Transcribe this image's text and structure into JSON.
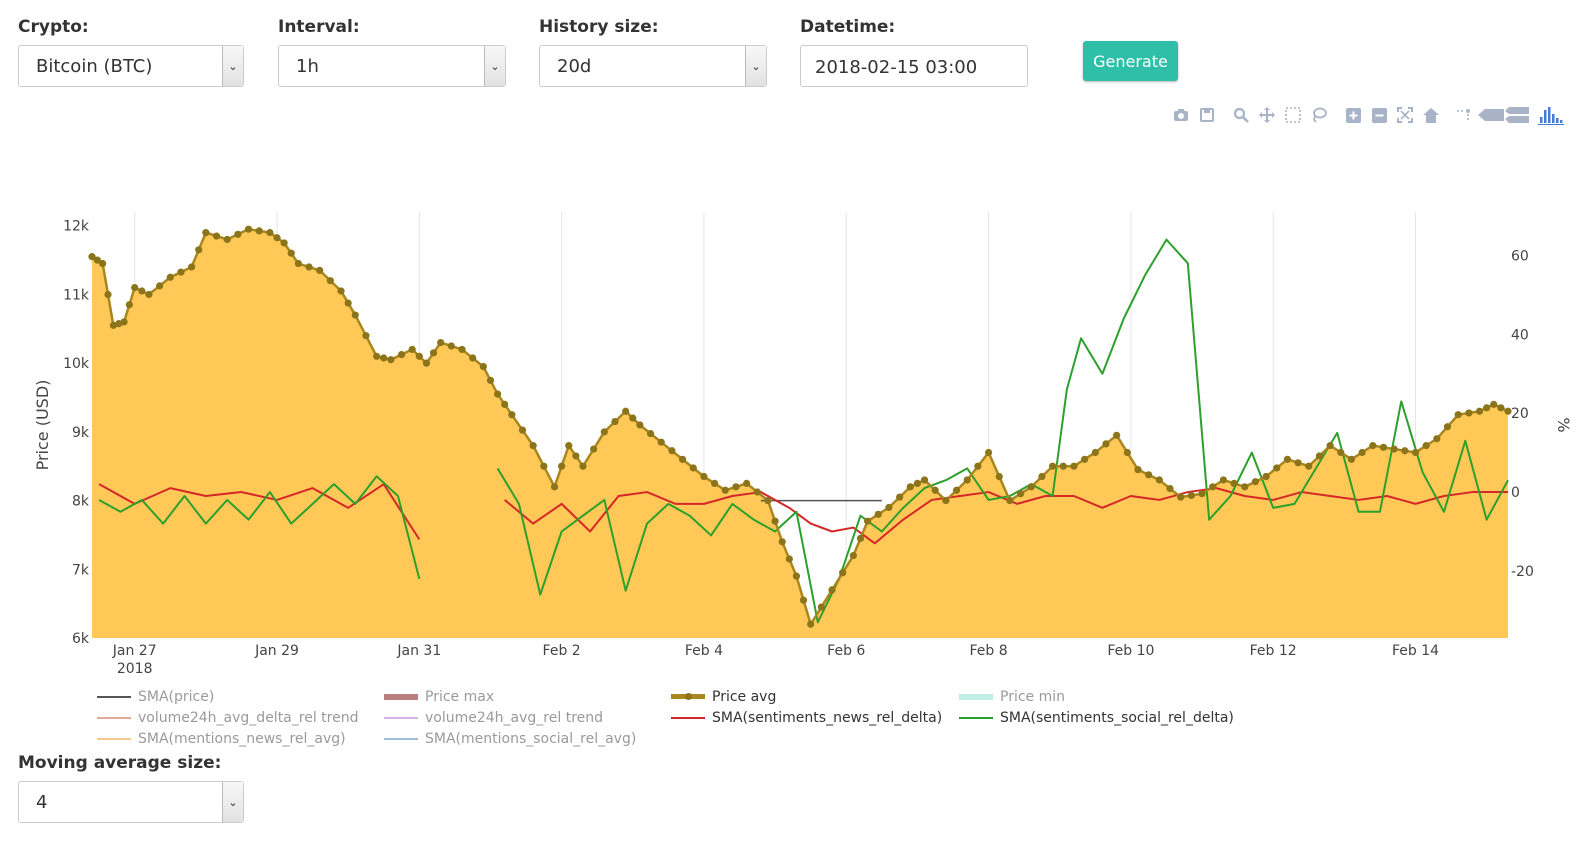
{
  "controls": {
    "crypto": {
      "label": "Crypto:",
      "value": "Bitcoin (BTC)"
    },
    "interval": {
      "label": "Interval:",
      "value": "1h"
    },
    "history": {
      "label": "History size:",
      "value": "20d"
    },
    "datetime": {
      "label": "Datetime:",
      "value": "2018-02-15 03:00"
    },
    "generate": "Generate",
    "moving_avg": {
      "label": "Moving average size:",
      "value": "4"
    }
  },
  "modebar": [
    "camera-icon",
    "save-icon",
    "zoom-icon",
    "pan-icon",
    "box-select-icon",
    "lasso-icon",
    "zoom-in-icon",
    "zoom-out-icon",
    "autoscale-icon",
    "reset-axes-icon",
    "spike-lines-icon",
    "hover-closest-icon",
    "hover-compare-icon",
    "plotly-logo-icon"
  ],
  "colors": {
    "price_fill": "#ffc857",
    "price_line": "#a8871f",
    "price_marker": "#8b7419",
    "news": "#d62728",
    "social": "#2ca02c",
    "sma_price": "#555555",
    "grid": "#e6e6e6",
    "accent": "#2fbfa8"
  },
  "chart_data": {
    "type": "line",
    "ylabel": "Price (USD)",
    "y2label": "%",
    "ylim": [
      6000,
      12200
    ],
    "y2lim": [
      -37,
      71
    ],
    "y_ticks": [
      "6k",
      "7k",
      "8k",
      "9k",
      "10k",
      "11k",
      "12k"
    ],
    "y2_ticks": [
      "-20",
      "0",
      "20",
      "40",
      "60"
    ],
    "x_ticks": [
      "Jan 27",
      "Jan 29",
      "Jan 31",
      "Feb 2",
      "Feb 4",
      "Feb 6",
      "Feb 8",
      "Feb 10",
      "Feb 12",
      "Feb 14"
    ],
    "x_year": "2018",
    "x_range_days": [
      26.4,
      46.3
    ],
    "series": [
      {
        "name": "Price avg",
        "axis": "left",
        "fill": true,
        "x": [
          26.4,
          26.55,
          26.7,
          26.85,
          27,
          27.2,
          27.5,
          27.8,
          28,
          28.3,
          28.6,
          28.9,
          29.1,
          29.3,
          29.6,
          29.9,
          30.1,
          30.4,
          30.6,
          30.9,
          31.1,
          31.3,
          31.6,
          31.9,
          32.1,
          32.3,
          32.6,
          32.9,
          33.1,
          33.3,
          33.6,
          33.9,
          34.1,
          34.4,
          34.7,
          35,
          35.3,
          35.6,
          35.9,
          36.1,
          36.3,
          36.5,
          36.8,
          37.1,
          37.3,
          37.6,
          37.9,
          38.1,
          38.4,
          38.7,
          39,
          39.3,
          39.6,
          39.9,
          40.2,
          40.5,
          40.8,
          41.1,
          41.4,
          41.7,
          42,
          42.3,
          42.6,
          42.9,
          43.2,
          43.5,
          43.8,
          44.1,
          44.4,
          44.7,
          45,
          45.3,
          45.6,
          45.9,
          46.1,
          46.3
        ],
        "values": [
          11550,
          11450,
          10550,
          10600,
          11100,
          11000,
          11250,
          11400,
          11900,
          11800,
          11950,
          11900,
          11750,
          11450,
          11350,
          11050,
          10700,
          10100,
          10050,
          10200,
          10000,
          10300,
          10200,
          9950,
          9550,
          9250,
          8800,
          8200,
          8800,
          8500,
          9000,
          9300,
          9100,
          8850,
          8600,
          8350,
          8150,
          8250,
          8000,
          7400,
          6900,
          6200,
          6700,
          7200,
          7700,
          7900,
          8200,
          8300,
          8000,
          8300,
          8700,
          8000,
          8200,
          8500,
          8500,
          8700,
          8950,
          8450,
          8300,
          8050,
          8100,
          8300,
          8200,
          8350,
          8600,
          8500,
          8800,
          8600,
          8800,
          8750,
          8700,
          8900,
          9250,
          9300,
          9400,
          9300
        ]
      },
      {
        "name": "SMA(sentiments_news_rel_delta)",
        "axis": "right",
        "x": [
          26.5,
          27,
          27.5,
          28,
          28.5,
          29,
          29.5,
          30,
          30.5,
          31,
          32.2,
          32.6,
          33,
          33.4,
          33.8,
          34.2,
          34.6,
          35,
          35.4,
          35.8,
          36.2,
          36.5,
          36.8,
          37.1,
          37.4,
          37.8,
          38.2,
          38.6,
          39,
          39.4,
          39.8,
          40.2,
          40.6,
          41,
          41.4,
          41.8,
          42.2,
          42.6,
          43,
          43.4,
          43.8,
          44.2,
          44.6,
          45,
          45.4,
          45.8,
          46.3
        ],
        "values": [
          2,
          -3,
          1,
          -1,
          0,
          -2,
          1,
          -4,
          2,
          -12,
          -2,
          -8,
          -3,
          -10,
          -1,
          0,
          -3,
          -3,
          -1,
          0,
          -4,
          -8,
          -10,
          -9,
          -13,
          -7,
          -2,
          -1,
          0,
          -3,
          -1,
          -1,
          -4,
          -1,
          -2,
          0,
          1,
          -1,
          -2,
          0,
          -1,
          -2,
          -1,
          -3,
          -1,
          0,
          0
        ]
      },
      {
        "name": "SMA(sentiments_social_rel_delta)",
        "axis": "right",
        "x": [
          26.5,
          26.8,
          27.1,
          27.4,
          27.7,
          28,
          28.3,
          28.6,
          28.9,
          29.2,
          29.5,
          29.8,
          30.1,
          30.4,
          30.7,
          31,
          32.1,
          32.4,
          32.7,
          33,
          33.3,
          33.6,
          33.9,
          34.2,
          34.5,
          34.8,
          35.1,
          35.4,
          35.7,
          36,
          36.3,
          36.6,
          36.9,
          37.2,
          37.5,
          37.8,
          38.1,
          38.4,
          38.7,
          39,
          39.3,
          39.6,
          39.9,
          40.1,
          40.3,
          40.6,
          40.9,
          41.2,
          41.5,
          41.8,
          42.1,
          42.4,
          42.7,
          43,
          43.3,
          43.6,
          43.9,
          44.2,
          44.5,
          44.8,
          45.1,
          45.4,
          45.7,
          46,
          46.3
        ],
        "values": [
          -2,
          -5,
          -2,
          -8,
          -1,
          -8,
          -2,
          -7,
          0,
          -8,
          -3,
          2,
          -3,
          4,
          -1,
          -22,
          6,
          -3,
          -26,
          -10,
          -6,
          -2,
          -25,
          -8,
          -3,
          -6,
          -11,
          -3,
          -7,
          -10,
          -5,
          -33,
          -22,
          -6,
          -10,
          -4,
          1,
          3,
          6,
          -2,
          -1,
          2,
          -1,
          26,
          39,
          30,
          44,
          55,
          64,
          58,
          -7,
          -1,
          10,
          -4,
          -3,
          6,
          15,
          -5,
          -5,
          23,
          5,
          -5,
          13,
          -7,
          3
        ]
      },
      {
        "name": "SMA(price)",
        "axis": "left",
        "x": [
          35.8,
          37.5
        ],
        "values": [
          8000,
          8000
        ]
      }
    ],
    "legend": [
      {
        "name": "SMA(price)",
        "visible": false
      },
      {
        "name": "Price max",
        "visible": false
      },
      {
        "name": "Price avg",
        "visible": true
      },
      {
        "name": "Price min",
        "visible": false
      },
      {
        "name": "volume24h_avg_delta_rel trend",
        "visible": false
      },
      {
        "name": "volume24h_avg_rel trend",
        "visible": false
      },
      {
        "name": "SMA(sentiments_news_rel_delta)",
        "visible": true
      },
      {
        "name": "SMA(sentiments_social_rel_delta)",
        "visible": true
      },
      {
        "name": "SMA(mentions_news_rel_avg)",
        "visible": false
      },
      {
        "name": "SMA(mentions_social_rel_avg)",
        "visible": false
      }
    ],
    "legend_placement": "bottom",
    "grid": true
  }
}
